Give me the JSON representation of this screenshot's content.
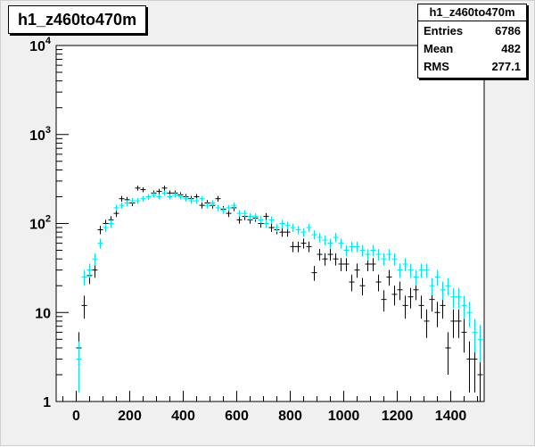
{
  "title": "h1_z460to470m",
  "stats": {
    "name": "h1_z460to470m",
    "rows": [
      {
        "label": "Entries",
        "value": "6786"
      },
      {
        "label": "Mean",
        "value": "482"
      },
      {
        "label": "RMS",
        "value": "277.1"
      }
    ]
  },
  "colors": {
    "series_black": "#000000",
    "series_cyan": "#00e5e5",
    "frame": "#000000",
    "plot_bg": "#ffffff",
    "canvas_bg": "#f0f0f0"
  },
  "chart_data": {
    "type": "scatter",
    "title": "h1_z460to470m",
    "xlabel": "",
    "ylabel": "",
    "xlim": [
      -75,
      1525
    ],
    "ylim": [
      1,
      10000
    ],
    "log_y": true,
    "grid": false,
    "x_ticks": [
      0,
      200,
      400,
      600,
      800,
      1000,
      1200,
      1400
    ],
    "y_ticks": [
      {
        "value": 1,
        "base": "1",
        "exp": ""
      },
      {
        "value": 10,
        "base": "10",
        "exp": ""
      },
      {
        "value": 100,
        "base": "10",
        "exp": "2"
      },
      {
        "value": 1000,
        "base": "10",
        "exp": "3"
      },
      {
        "value": 10000,
        "base": "10",
        "exp": "4"
      }
    ],
    "bin_width": 20,
    "series": [
      {
        "color": "black",
        "x": [
          10,
          30,
          50,
          70,
          90,
          110,
          130,
          150,
          170,
          190,
          210,
          230,
          250,
          270,
          290,
          310,
          330,
          350,
          370,
          390,
          410,
          430,
          450,
          470,
          490,
          510,
          530,
          550,
          570,
          590,
          610,
          630,
          650,
          670,
          690,
          710,
          730,
          750,
          770,
          790,
          810,
          830,
          850,
          870,
          890,
          910,
          930,
          950,
          970,
          990,
          1010,
          1030,
          1050,
          1070,
          1090,
          1110,
          1130,
          1150,
          1170,
          1190,
          1210,
          1230,
          1250,
          1270,
          1290,
          1310,
          1330,
          1350,
          1370,
          1390,
          1410,
          1430,
          1450,
          1470,
          1490,
          1510
        ],
        "y": [
          4,
          12,
          26,
          30,
          85,
          100,
          110,
          130,
          190,
          185,
          170,
          250,
          240,
          200,
          220,
          230,
          250,
          220,
          220,
          210,
          200,
          190,
          200,
          160,
          170,
          160,
          190,
          145,
          130,
          150,
          110,
          120,
          110,
          115,
          100,
          120,
          90,
          85,
          80,
          80,
          55,
          55,
          60,
          55,
          28,
          45,
          40,
          45,
          40,
          35,
          35,
          22,
          30,
          20,
          35,
          35,
          22,
          14,
          25,
          16,
          18,
          12,
          15,
          18,
          12,
          8,
          14,
          10,
          12,
          4,
          8,
          8,
          6,
          3,
          3,
          2
        ]
      },
      {
        "color": "cyan",
        "x": [
          10,
          30,
          50,
          70,
          90,
          110,
          130,
          150,
          170,
          190,
          210,
          230,
          250,
          270,
          290,
          310,
          330,
          350,
          370,
          390,
          410,
          430,
          450,
          470,
          490,
          510,
          530,
          550,
          570,
          590,
          610,
          630,
          650,
          670,
          690,
          710,
          730,
          750,
          770,
          790,
          810,
          830,
          850,
          870,
          890,
          910,
          930,
          950,
          970,
          990,
          1010,
          1030,
          1050,
          1070,
          1090,
          1110,
          1130,
          1150,
          1170,
          1190,
          1210,
          1230,
          1250,
          1270,
          1290,
          1310,
          1330,
          1350,
          1370,
          1390,
          1410,
          1430,
          1450,
          1470,
          1490,
          1510
        ],
        "y": [
          3,
          25,
          30,
          40,
          60,
          90,
          100,
          150,
          160,
          170,
          180,
          180,
          190,
          200,
          210,
          200,
          220,
          200,
          210,
          200,
          190,
          180,
          180,
          190,
          160,
          170,
          150,
          140,
          150,
          160,
          130,
          130,
          120,
          120,
          110,
          100,
          110,
          90,
          100,
          95,
          90,
          85,
          80,
          90,
          75,
          70,
          65,
          60,
          70,
          60,
          50,
          55,
          55,
          50,
          45,
          50,
          45,
          40,
          45,
          40,
          30,
          35,
          30,
          25,
          30,
          30,
          20,
          25,
          18,
          20,
          15,
          15,
          12,
          10,
          6,
          5
        ]
      }
    ]
  }
}
